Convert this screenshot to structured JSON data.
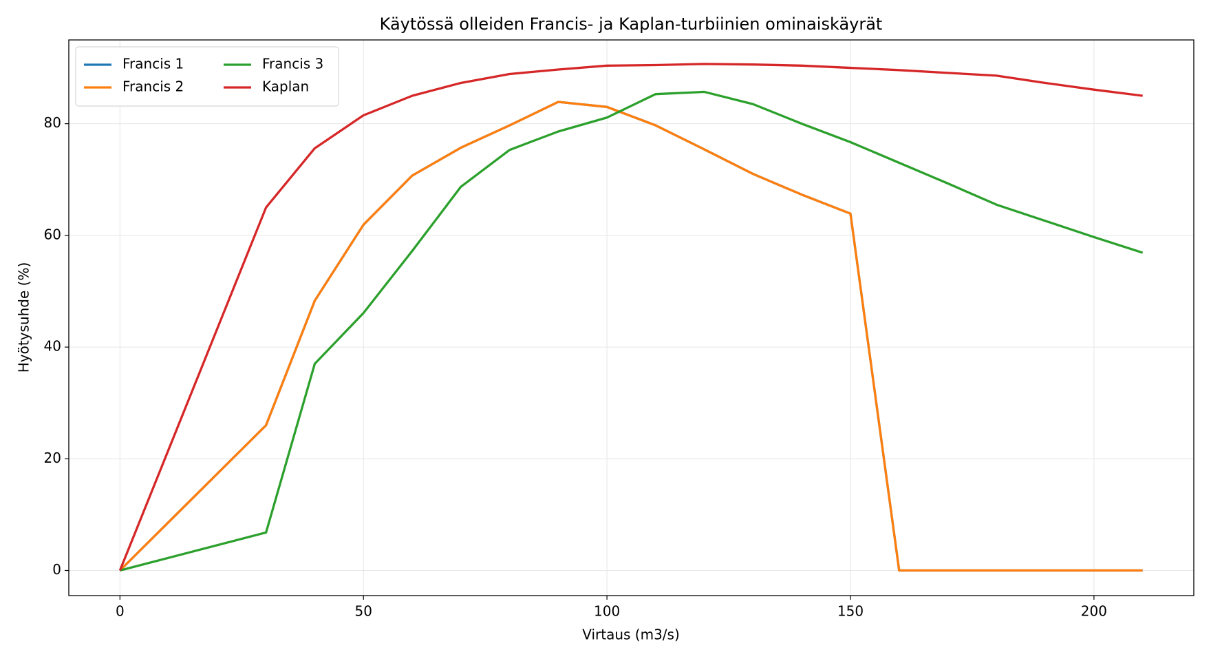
{
  "chart_data": {
    "type": "line",
    "title": "Käytössä olleiden Francis- ja Kaplan-turbiinien ominaiskäyrät",
    "xlabel": "Virtaus (m3/s)",
    "ylabel": "Hyötysuhde (%)",
    "x": [
      0,
      30,
      40,
      50,
      60,
      70,
      80,
      90,
      100,
      110,
      120,
      130,
      140,
      150,
      160,
      170,
      180,
      190,
      200,
      210
    ],
    "series": [
      {
        "name": "Francis 1",
        "color": "#1f77b4",
        "values": [
          0,
          26.0,
          48.3,
          61.9,
          70.7,
          75.7,
          79.7,
          83.9,
          83.0,
          79.7,
          75.4,
          71.0,
          67.3,
          63.9,
          0,
          0,
          0,
          0,
          0,
          0
        ]
      },
      {
        "name": "Francis 2",
        "color": "#ff7f0e",
        "values": [
          0,
          26.0,
          48.3,
          61.9,
          70.7,
          75.7,
          79.7,
          83.9,
          83.0,
          79.7,
          75.4,
          71.0,
          67.3,
          63.9,
          0,
          0,
          0,
          0,
          0,
          0
        ]
      },
      {
        "name": "Francis 3",
        "color": "#2ca02c",
        "values": [
          0,
          6.8,
          37.0,
          46.1,
          57.2,
          68.7,
          75.3,
          78.6,
          81.1,
          85.3,
          85.7,
          83.5,
          80.0,
          76.7,
          73.0,
          69.3,
          65.5,
          62.6,
          59.7,
          56.9
        ]
      },
      {
        "name": "Kaplan",
        "color": "#d62728",
        "values": [
          0,
          65.0,
          75.6,
          81.5,
          85.0,
          87.3,
          88.9,
          89.7,
          90.4,
          90.5,
          90.7,
          90.6,
          90.4,
          90.0,
          89.6,
          89.1,
          88.6,
          87.3,
          86.1,
          85.0
        ]
      }
    ],
    "xlim": [
      -10.5,
      220.5
    ],
    "ylim": [
      -4.5,
      95
    ],
    "xticks": [
      0,
      50,
      100,
      150,
      200
    ],
    "yticks": [
      0,
      20,
      40,
      60,
      80
    ],
    "grid": true,
    "legend": "upper left"
  }
}
